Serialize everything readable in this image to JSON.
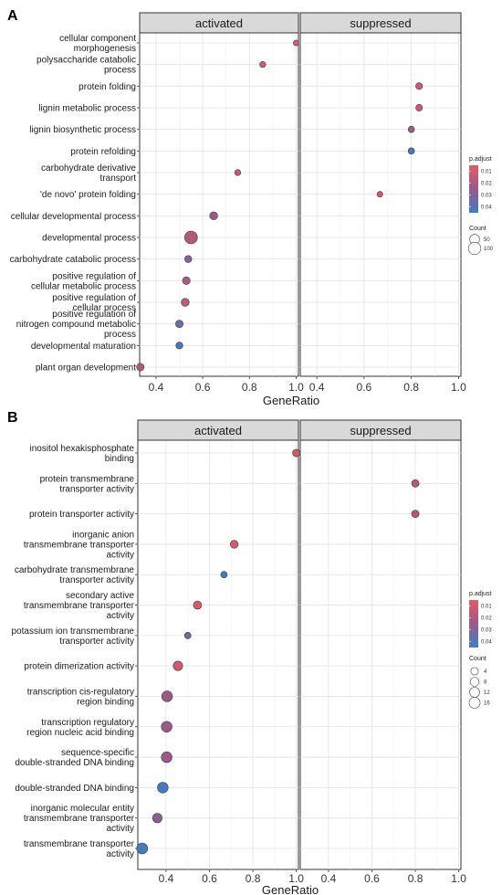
{
  "chart_data": [
    {
      "type": "scatter",
      "panel_label": "A",
      "facets": [
        "activated",
        "suppressed"
      ],
      "xlabel": "GeneRatio",
      "x_ticks": [
        "0.4",
        "0.6",
        "0.8",
        "1.0"
      ],
      "xlim": [
        0.33,
        1.01
      ],
      "terms": [
        {
          "label": "cellular component morphogenesis",
          "lines": [
            "cellular component",
            "morphogenesis"
          ]
        },
        {
          "label": "polysaccharide catabolic process",
          "lines": [
            "polysaccharide catabolic",
            "process"
          ]
        },
        {
          "label": "protein folding",
          "lines": [
            "protein folding"
          ]
        },
        {
          "label": "lignin metabolic process",
          "lines": [
            "lignin metabolic process"
          ]
        },
        {
          "label": "lignin biosynthetic process",
          "lines": [
            "lignin biosynthetic process"
          ]
        },
        {
          "label": "protein refolding",
          "lines": [
            "protein refolding"
          ]
        },
        {
          "label": "carbohydrate derivative transport",
          "lines": [
            "carbohydrate derivative",
            "transport"
          ]
        },
        {
          "label": "'de novo' protein folding",
          "lines": [
            "'de novo' protein folding"
          ]
        },
        {
          "label": "cellular developmental process",
          "lines": [
            "cellular developmental process"
          ]
        },
        {
          "label": "developmental process",
          "lines": [
            "developmental process"
          ]
        },
        {
          "label": "carbohydrate catabolic process",
          "lines": [
            "carbohydrate catabolic process"
          ]
        },
        {
          "label": "positive regulation of cellular metabolic process",
          "lines": [
            "positive regulation of",
            "cellular metabolic process"
          ]
        },
        {
          "label": "positive regulation of cellular process",
          "lines": [
            "positive regulation of",
            "cellular process"
          ]
        },
        {
          "label": "positive regulation of nitrogen compound metabolic process",
          "lines": [
            "positive regulation of",
            "nitrogen compound metabolic",
            "process"
          ]
        },
        {
          "label": "developmental maturation",
          "lines": [
            "developmental maturation"
          ]
        },
        {
          "label": "plant organ development",
          "lines": [
            "plant organ development"
          ]
        }
      ],
      "points": [
        {
          "term": 0,
          "facet": "activated",
          "x": 1.0,
          "count": 4,
          "p_adjust": 0.008
        },
        {
          "term": 1,
          "facet": "activated",
          "x": 0.857,
          "count": 6,
          "p_adjust": 0.01
        },
        {
          "term": 2,
          "facet": "suppressed",
          "x": 0.833,
          "count": 10,
          "p_adjust": 0.01
        },
        {
          "term": 3,
          "facet": "suppressed",
          "x": 0.833,
          "count": 10,
          "p_adjust": 0.012
        },
        {
          "term": 4,
          "facet": "suppressed",
          "x": 0.8,
          "count": 8,
          "p_adjust": 0.022
        },
        {
          "term": 5,
          "facet": "suppressed",
          "x": 0.8,
          "count": 8,
          "p_adjust": 0.042
        },
        {
          "term": 6,
          "facet": "activated",
          "x": 0.75,
          "count": 6,
          "p_adjust": 0.012
        },
        {
          "term": 7,
          "facet": "suppressed",
          "x": 0.667,
          "count": 4,
          "p_adjust": 0.009
        },
        {
          "term": 8,
          "facet": "activated",
          "x": 0.647,
          "count": 22,
          "p_adjust": 0.025
        },
        {
          "term": 9,
          "facet": "activated",
          "x": 0.55,
          "count": 110,
          "p_adjust": 0.018
        },
        {
          "term": 10,
          "facet": "activated",
          "x": 0.538,
          "count": 14,
          "p_adjust": 0.03
        },
        {
          "term": 11,
          "facet": "activated",
          "x": 0.53,
          "count": 20,
          "p_adjust": 0.02
        },
        {
          "term": 12,
          "facet": "activated",
          "x": 0.525,
          "count": 22,
          "p_adjust": 0.015
        },
        {
          "term": 13,
          "facet": "activated",
          "x": 0.5,
          "count": 18,
          "p_adjust": 0.035
        },
        {
          "term": 14,
          "facet": "activated",
          "x": 0.5,
          "count": 12,
          "p_adjust": 0.043
        },
        {
          "term": 15,
          "facet": "activated",
          "x": 0.333,
          "count": 18,
          "p_adjust": 0.018
        }
      ],
      "legend_p_adjust": {
        "title": "p.adjust",
        "ticks": [
          "0.01",
          "0.02",
          "0.03",
          "0.04"
        ],
        "range": [
          0.005,
          0.045
        ]
      },
      "legend_count": {
        "title": "Count",
        "ticks": [
          "50",
          "100"
        ],
        "values": [
          50,
          100
        ],
        "max": 110
      }
    },
    {
      "type": "scatter",
      "panel_label": "B",
      "facets": [
        "activated",
        "suppressed"
      ],
      "xlabel": "GeneRatio",
      "x_ticks": [
        "0.4",
        "0.6",
        "0.8",
        "1.0"
      ],
      "xlim": [
        0.27,
        1.01
      ],
      "terms": [
        {
          "label": "inositol hexakisphosphate binding",
          "lines": [
            "inositol hexakisphosphate",
            "binding"
          ]
        },
        {
          "label": "protein transmembrane transporter activity",
          "lines": [
            "protein transmembrane",
            "transporter activity"
          ]
        },
        {
          "label": "protein transporter activity",
          "lines": [
            "protein transporter activity"
          ]
        },
        {
          "label": "inorganic anion transmembrane transporter activity",
          "lines": [
            "inorganic anion",
            "transmembrane transporter",
            "activity"
          ]
        },
        {
          "label": "carbohydrate transmembrane transporter activity",
          "lines": [
            "carbohydrate transmembrane",
            "transporter activity"
          ]
        },
        {
          "label": "secondary active transmembrane transporter activity",
          "lines": [
            "secondary active",
            "transmembrane transporter",
            "activity"
          ]
        },
        {
          "label": "potassium ion transmembrane transporter activity",
          "lines": [
            "potassium ion transmembrane",
            "transporter activity"
          ]
        },
        {
          "label": "protein dimerization activity",
          "lines": [
            "protein dimerization activity"
          ]
        },
        {
          "label": "transcription cis-regulatory region binding",
          "lines": [
            "transcription cis-regulatory",
            "region binding"
          ]
        },
        {
          "label": "transcription regulatory region nucleic acid binding",
          "lines": [
            "transcription regulatory",
            "region nucleic acid binding"
          ]
        },
        {
          "label": "sequence-specific double-stranded DNA binding",
          "lines": [
            "sequence-specific",
            "double-stranded DNA binding"
          ]
        },
        {
          "label": "double-stranded DNA binding",
          "lines": [
            "double-stranded DNA binding"
          ]
        },
        {
          "label": "inorganic molecular entity transmembrane transporter activity",
          "lines": [
            "inorganic molecular entity",
            "transmembrane transporter",
            "activity"
          ]
        },
        {
          "label": "transmembrane transporter activity",
          "lines": [
            "transmembrane transporter",
            "activity"
          ]
        }
      ],
      "points": [
        {
          "term": 0,
          "facet": "activated",
          "x": 1.0,
          "count": 4,
          "p_adjust": 0.01
        },
        {
          "term": 1,
          "facet": "suppressed",
          "x": 0.8,
          "count": 4,
          "p_adjust": 0.018
        },
        {
          "term": 2,
          "facet": "suppressed",
          "x": 0.8,
          "count": 4,
          "p_adjust": 0.018
        },
        {
          "term": 3,
          "facet": "activated",
          "x": 0.714,
          "count": 5,
          "p_adjust": 0.008
        },
        {
          "term": 4,
          "facet": "activated",
          "x": 0.667,
          "count": 2,
          "p_adjust": 0.045
        },
        {
          "term": 5,
          "facet": "activated",
          "x": 0.545,
          "count": 6,
          "p_adjust": 0.008
        },
        {
          "term": 6,
          "facet": "activated",
          "x": 0.5,
          "count": 2,
          "p_adjust": 0.035
        },
        {
          "term": 7,
          "facet": "activated",
          "x": 0.455,
          "count": 10,
          "p_adjust": 0.01
        },
        {
          "term": 8,
          "facet": "activated",
          "x": 0.405,
          "count": 15,
          "p_adjust": 0.025
        },
        {
          "term": 9,
          "facet": "activated",
          "x": 0.403,
          "count": 15,
          "p_adjust": 0.025
        },
        {
          "term": 10,
          "facet": "activated",
          "x": 0.403,
          "count": 15,
          "p_adjust": 0.025
        },
        {
          "term": 11,
          "facet": "activated",
          "x": 0.385,
          "count": 15,
          "p_adjust": 0.042
        },
        {
          "term": 12,
          "facet": "activated",
          "x": 0.36,
          "count": 10,
          "p_adjust": 0.028
        },
        {
          "term": 13,
          "facet": "activated",
          "x": 0.29,
          "count": 16,
          "p_adjust": 0.043
        }
      ],
      "legend_p_adjust": {
        "title": "p.adjust",
        "ticks": [
          "0.01",
          "0.02",
          "0.03",
          "0.04"
        ],
        "range": [
          0.005,
          0.045
        ]
      },
      "legend_count": {
        "title": "Count",
        "ticks": [
          "4",
          "8",
          "12",
          "16"
        ],
        "values": [
          4,
          8,
          12,
          16
        ],
        "max": 16
      }
    }
  ]
}
